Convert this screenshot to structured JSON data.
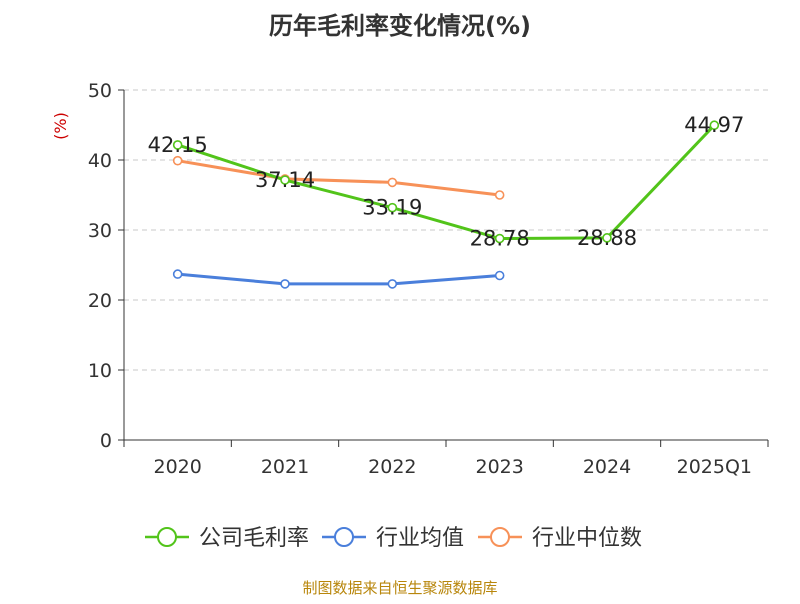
{
  "chart_data": {
    "type": "line",
    "title": "历年毛利率变化情况(%)",
    "ylabel": "(%)",
    "xlabel": "",
    "categories": [
      "2020",
      "2021",
      "2022",
      "2023",
      "2024",
      "2025Q1"
    ],
    "ylim": [
      0,
      50
    ],
    "yticks": [
      0,
      10,
      20,
      30,
      40,
      50
    ],
    "grid": true,
    "legend_position": "bottom",
    "series": [
      {
        "name": "公司毛利率",
        "color": "#52c41a",
        "values": [
          42.15,
          37.14,
          33.19,
          28.78,
          28.88,
          44.97
        ],
        "value_labels": [
          "42.15",
          "37.14",
          "33.19",
          "28.78",
          "28.88",
          "44.97"
        ],
        "show_labels": true
      },
      {
        "name": "行业均值",
        "color": "#4a7fdb",
        "values": [
          23.7,
          22.3,
          22.3,
          23.5,
          null,
          null
        ],
        "show_labels": false
      },
      {
        "name": "行业中位数",
        "color": "#f79158",
        "values": [
          39.9,
          37.3,
          36.8,
          35.0,
          null,
          null
        ],
        "show_labels": false
      }
    ]
  },
  "source": "制图数据来自恒生聚源数据库",
  "colors": {
    "ylabel": "#cc0000",
    "source": "#b8860b",
    "axis": "#333333",
    "grid": "#c8c8c8",
    "title": "#333333"
  }
}
